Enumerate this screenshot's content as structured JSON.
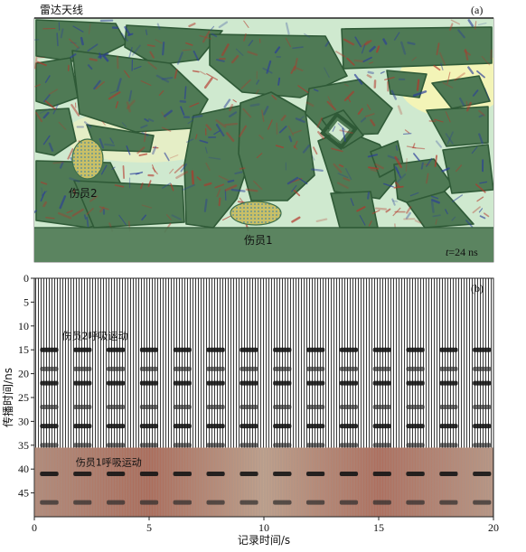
{
  "panel_a": {
    "label": "(a)",
    "antenna_label": "雷达天线",
    "wounded1_label": "伤员1",
    "wounded2_label": "伤员2",
    "time_prefix": "t",
    "time_value": "=24 ns",
    "colors": {
      "rubble": "#4f7a55",
      "rubble_edge": "#2f5a37",
      "field": "#cfe9cf",
      "background": "#fbf6b0",
      "hot": "#b5352a",
      "cold": "#2a3d9a",
      "human": "#c9c067"
    }
  },
  "chart_data": {
    "type": "heatmap",
    "label": "(b)",
    "xlabel": "记录时间/s",
    "ylabel": "传播时间/ns",
    "xlim": [
      0,
      20
    ],
    "ylim": [
      0,
      50
    ],
    "y_inverted": true,
    "xticks": [
      0,
      5,
      10,
      15,
      20
    ],
    "yticks": [
      0,
      5,
      10,
      15,
      20,
      25,
      30,
      35,
      40,
      45
    ],
    "grid": false,
    "annotations": [
      {
        "text": "伤员2呼吸运动",
        "x": 1.2,
        "y": 12
      },
      {
        "text": "伤员1呼吸运动",
        "x": 1.8,
        "y": 38.5
      }
    ],
    "highlight_band": {
      "y_start": 35.5,
      "y_end": 50,
      "color": "#c48a70"
    },
    "breathing_period_s": 1.45,
    "breathing_pulse_starts_s": [
      0,
      1.45,
      2.9,
      4.35,
      5.8,
      7.25,
      8.7,
      10.15,
      11.6,
      13.05,
      14.5,
      15.95,
      17.4,
      18.85
    ],
    "reflection_depths_ns": [
      15,
      19,
      22,
      27,
      31,
      35,
      41,
      47
    ]
  }
}
